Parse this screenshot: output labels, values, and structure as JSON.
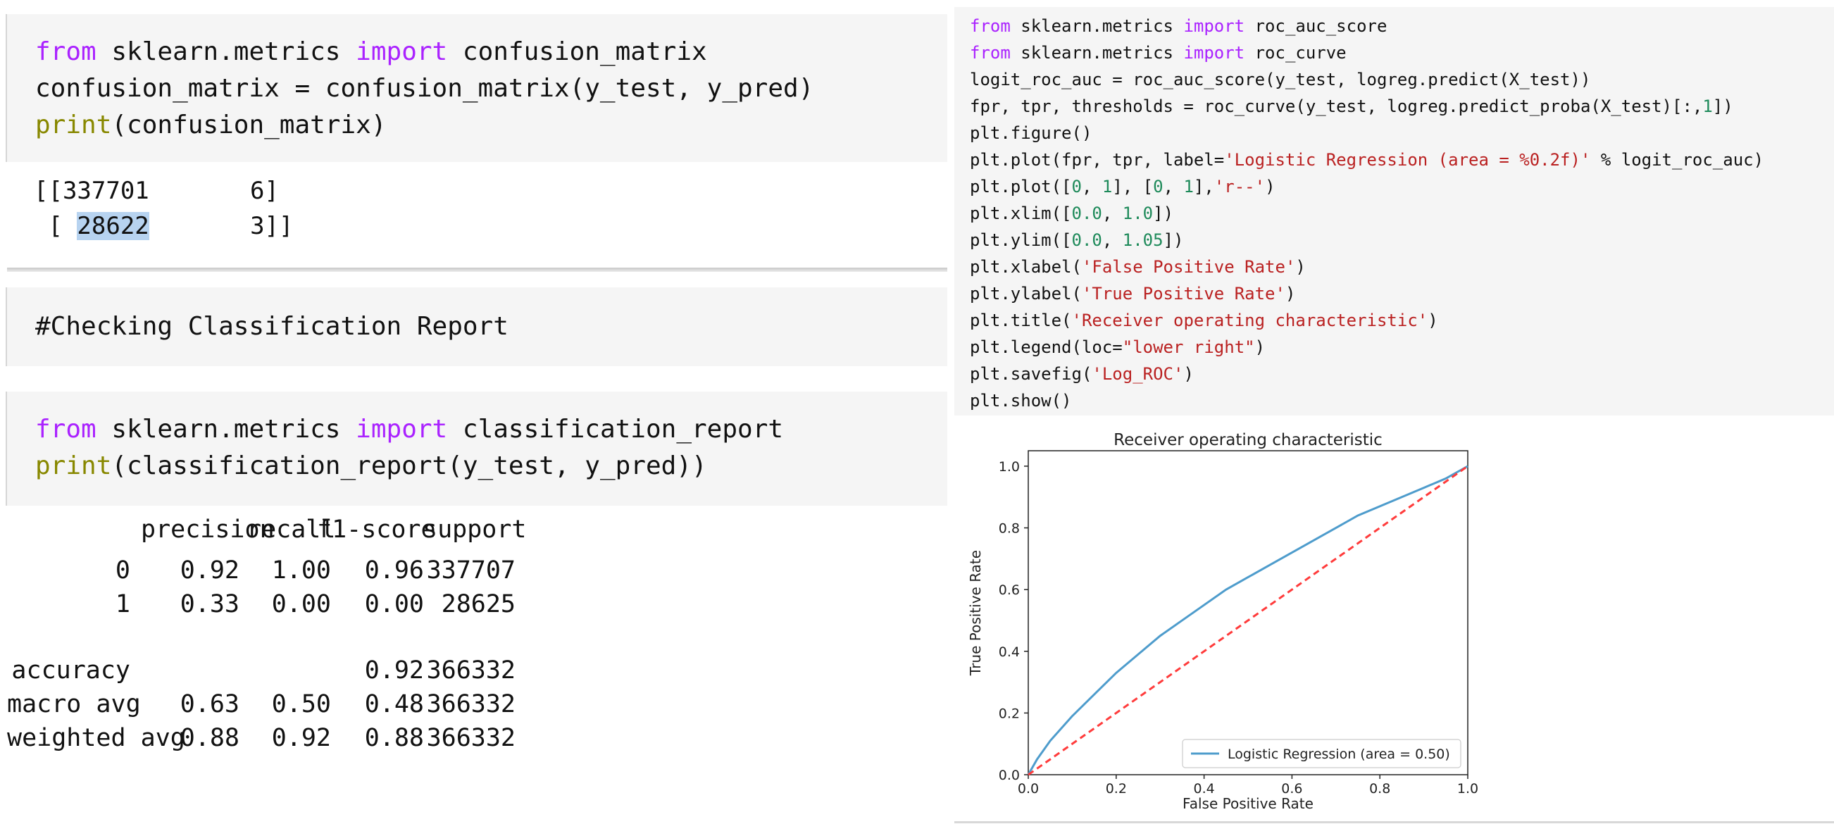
{
  "cell_confusion": {
    "lines": [
      [
        {
          "t": "from",
          "c": "kw"
        },
        {
          "t": " sklearn.metrics "
        },
        {
          "t": "import",
          "c": "kw"
        },
        {
          "t": " confusion_matrix"
        }
      ],
      [
        {
          "t": "confusion_matrix = confusion_matrix(y_test, y_pred)"
        }
      ],
      [
        {
          "t": "print",
          "c": "bi"
        },
        {
          "t": "(confusion_matrix)"
        }
      ]
    ]
  },
  "confusion_output": {
    "line1_prefix": "[[337701       6]",
    "line2_pre": " [ ",
    "line2_highlight": "28622",
    "line2_post": "       3]]"
  },
  "cell_comment": {
    "text": "#Checking Classification Report"
  },
  "cell_report": {
    "lines": [
      [
        {
          "t": "from",
          "c": "kw"
        },
        {
          "t": " sklearn.metrics "
        },
        {
          "t": "import",
          "c": "kw"
        },
        {
          "t": " classification_report"
        }
      ],
      [
        {
          "t": "print",
          "c": "bi"
        },
        {
          "t": "(classification_report(y_test, y_pred))"
        }
      ]
    ]
  },
  "classification_report": {
    "headers": [
      "precision",
      "recall",
      "f1-score",
      "support"
    ],
    "rows": [
      {
        "label": "0",
        "precision": "0.92",
        "recall": "1.00",
        "f1": "0.96",
        "support": "337707"
      },
      {
        "label": "1",
        "precision": "0.33",
        "recall": "0.00",
        "f1": "0.00",
        "support": "28625"
      },
      {
        "label": "accuracy",
        "precision": "",
        "recall": "",
        "f1": "0.92",
        "support": "366332"
      },
      {
        "label": "macro avg",
        "precision": "0.63",
        "recall": "0.50",
        "f1": "0.48",
        "support": "366332"
      },
      {
        "label": "weighted avg",
        "precision": "0.88",
        "recall": "0.92",
        "f1": "0.88",
        "support": "366332"
      }
    ]
  },
  "cell_roc": {
    "lines": [
      [
        {
          "t": "from",
          "c": "kw"
        },
        {
          "t": " sklearn.metrics "
        },
        {
          "t": "import",
          "c": "kw"
        },
        {
          "t": " roc_auc_score"
        }
      ],
      [
        {
          "t": "from",
          "c": "kw"
        },
        {
          "t": " sklearn.metrics "
        },
        {
          "t": "import",
          "c": "kw"
        },
        {
          "t": " roc_curve"
        }
      ],
      [
        {
          "t": "logit_roc_auc = roc_auc_score(y_test, logreg.predict(X_test))"
        }
      ],
      [
        {
          "t": "fpr, tpr, thresholds = roc_curve(y_test, logreg.predict_proba(X_test)[:,"
        },
        {
          "t": "1",
          "c": "nm"
        },
        {
          "t": "])"
        }
      ],
      [
        {
          "t": "plt.figure()"
        }
      ],
      [
        {
          "t": "plt.plot(fpr, tpr, label="
        },
        {
          "t": "'Logistic Regression (area = %0.2f)'",
          "c": "st"
        },
        {
          "t": " % logit_roc_auc)"
        }
      ],
      [
        {
          "t": "plt.plot(["
        },
        {
          "t": "0",
          "c": "nm"
        },
        {
          "t": ", "
        },
        {
          "t": "1",
          "c": "nm"
        },
        {
          "t": "], ["
        },
        {
          "t": "0",
          "c": "nm"
        },
        {
          "t": ", "
        },
        {
          "t": "1",
          "c": "nm"
        },
        {
          "t": "],"
        },
        {
          "t": "'r--'",
          "c": "st"
        },
        {
          "t": ")"
        }
      ],
      [
        {
          "t": "plt.xlim(["
        },
        {
          "t": "0.0",
          "c": "nm"
        },
        {
          "t": ", "
        },
        {
          "t": "1.0",
          "c": "nm"
        },
        {
          "t": "])"
        }
      ],
      [
        {
          "t": "plt.ylim(["
        },
        {
          "t": "0.0",
          "c": "nm"
        },
        {
          "t": ", "
        },
        {
          "t": "1.05",
          "c": "nm"
        },
        {
          "t": "])"
        }
      ],
      [
        {
          "t": "plt.xlabel("
        },
        {
          "t": "'False Positive Rate'",
          "c": "st"
        },
        {
          "t": ")"
        }
      ],
      [
        {
          "t": "plt.ylabel("
        },
        {
          "t": "'True Positive Rate'",
          "c": "st"
        },
        {
          "t": ")"
        }
      ],
      [
        {
          "t": "plt.title("
        },
        {
          "t": "'Receiver operating characteristic'",
          "c": "st"
        },
        {
          "t": ")"
        }
      ],
      [
        {
          "t": "plt.legend(loc="
        },
        {
          "t": "\"lower right\"",
          "c": "st"
        },
        {
          "t": ")"
        }
      ],
      [
        {
          "t": "plt.savefig("
        },
        {
          "t": "'Log_ROC'",
          "c": "st"
        },
        {
          "t": ")"
        }
      ],
      [
        {
          "t": "plt.show()"
        }
      ]
    ]
  },
  "chart_data": {
    "type": "line",
    "title": "Receiver operating characteristic",
    "xlabel": "False Positive Rate",
    "ylabel": "True Positive Rate",
    "xlim": [
      0.0,
      1.0
    ],
    "ylim": [
      0.0,
      1.05
    ],
    "xticks": [
      "0.0",
      "0.2",
      "0.4",
      "0.6",
      "0.8",
      "1.0"
    ],
    "yticks": [
      "0.0",
      "0.2",
      "0.4",
      "0.6",
      "0.8",
      "1.0"
    ],
    "grid": false,
    "legend_loc": "lower right",
    "series": [
      {
        "name": "Logistic Regression (area = 0.50)",
        "color": "#4e9ccc",
        "style": "solid",
        "x": [
          0.0,
          0.02,
          0.05,
          0.1,
          0.15,
          0.2,
          0.25,
          0.3,
          0.35,
          0.4,
          0.45,
          0.5,
          0.55,
          0.6,
          0.65,
          0.7,
          0.75,
          0.8,
          0.85,
          0.9,
          0.95,
          1.0
        ],
        "y": [
          0.0,
          0.05,
          0.11,
          0.19,
          0.26,
          0.33,
          0.39,
          0.45,
          0.5,
          0.55,
          0.6,
          0.64,
          0.68,
          0.72,
          0.76,
          0.8,
          0.84,
          0.87,
          0.9,
          0.93,
          0.96,
          1.0
        ]
      },
      {
        "name": "",
        "color": "#ff3b3b",
        "style": "dashed",
        "x": [
          0.0,
          1.0
        ],
        "y": [
          0.0,
          1.0
        ]
      }
    ]
  }
}
